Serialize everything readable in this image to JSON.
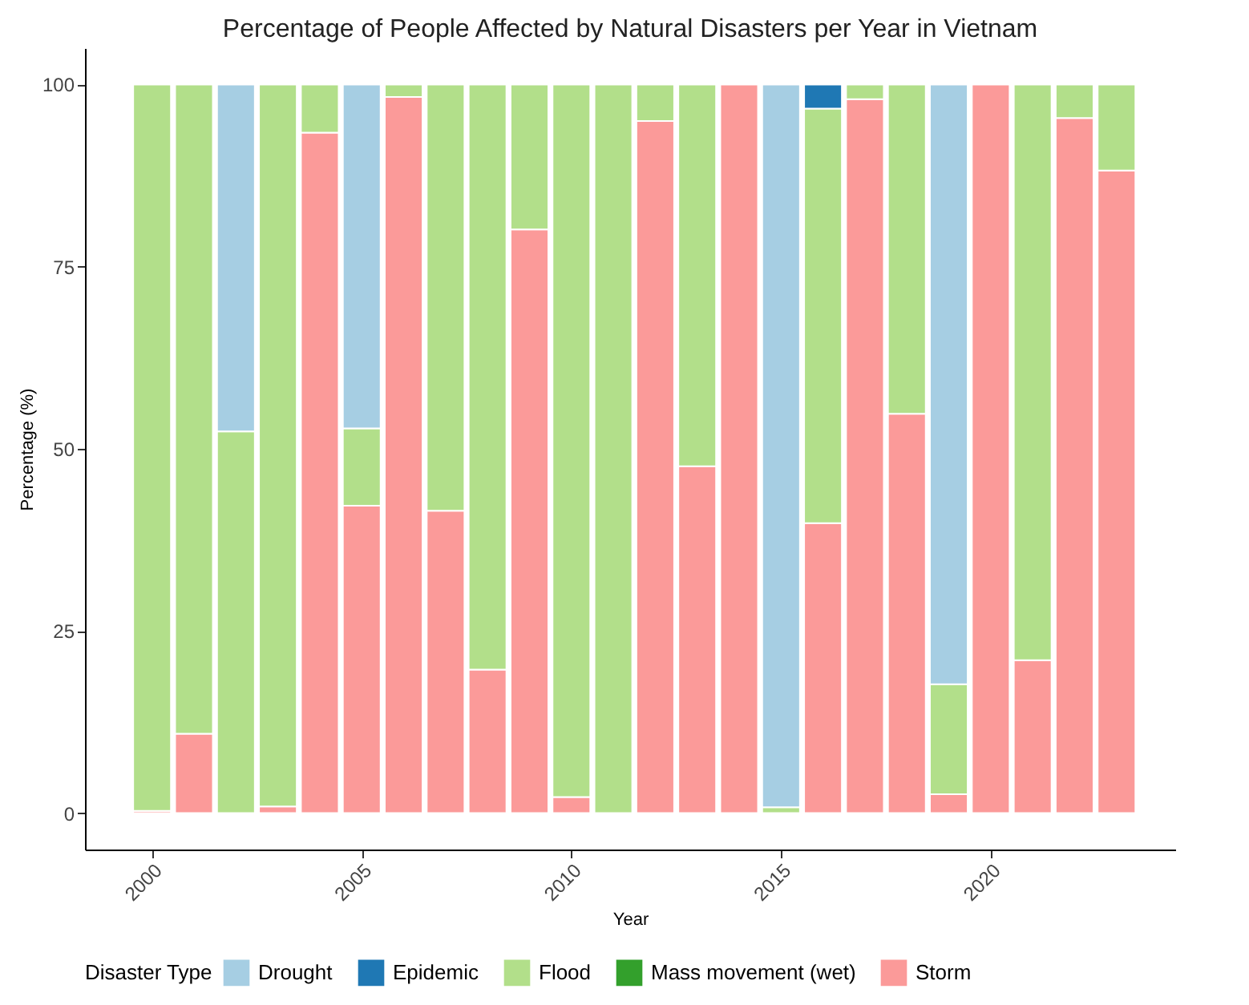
{
  "chart_data": {
    "type": "bar",
    "title": "Percentage of People Affected by Natural Disasters per Year in Vietnam",
    "xlabel": "Year",
    "ylabel": "Percentage (%)",
    "legend_title": "Disaster Type",
    "x": [
      2000,
      2001,
      2002,
      2003,
      2004,
      2005,
      2006,
      2007,
      2008,
      2009,
      2010,
      2011,
      2012,
      2013,
      2014,
      2015,
      2016,
      2017,
      2018,
      2019,
      2020,
      2021,
      2022,
      2023
    ],
    "series": [
      {
        "name": "Storm",
        "color": "#fb9a99",
        "values": [
          0.3,
          10.9,
          null,
          0.9,
          93.4,
          42.2,
          98.3,
          41.5,
          19.7,
          80.1,
          2.2,
          null,
          95.0,
          47.6,
          100,
          null,
          39.8,
          98.0,
          54.8,
          2.6,
          100,
          21.0,
          95.4,
          88.2
        ]
      },
      {
        "name": "Mass movement (wet)",
        "color": "#33a02c",
        "values": [
          null,
          null,
          null,
          null,
          null,
          null,
          null,
          null,
          null,
          null,
          null,
          null,
          null,
          null,
          null,
          null,
          null,
          null,
          null,
          null,
          null,
          null,
          null,
          null
        ]
      },
      {
        "name": "Flood",
        "color": "#b2df8a",
        "values": [
          99.7,
          89.1,
          52.4,
          99.1,
          6.6,
          10.6,
          1.7,
          58.5,
          80.3,
          19.9,
          97.8,
          100,
          5.0,
          52.4,
          null,
          0.8,
          56.9,
          2.0,
          45.2,
          15.1,
          null,
          79.0,
          4.6,
          11.8
        ]
      },
      {
        "name": "Epidemic",
        "color": "#1f78b4",
        "values": [
          null,
          null,
          null,
          null,
          null,
          null,
          null,
          null,
          null,
          null,
          null,
          null,
          null,
          null,
          null,
          null,
          3.3,
          null,
          null,
          null,
          null,
          null,
          null,
          null
        ]
      },
      {
        "name": "Drought",
        "color": "#a6cee3",
        "values": [
          null,
          null,
          47.6,
          null,
          null,
          47.2,
          null,
          null,
          null,
          null,
          null,
          null,
          null,
          null,
          null,
          99.2,
          null,
          null,
          null,
          82.3,
          null,
          null,
          null,
          null
        ]
      }
    ],
    "stacked": true,
    "xlim": [
      1998.4,
      2024.4
    ],
    "xticks": [
      2000,
      2005,
      2010,
      2015,
      2020
    ],
    "ylim": [
      -5,
      105
    ],
    "yticks": [
      0,
      25,
      50,
      75,
      100
    ],
    "grid": false,
    "legend": "bottom"
  }
}
